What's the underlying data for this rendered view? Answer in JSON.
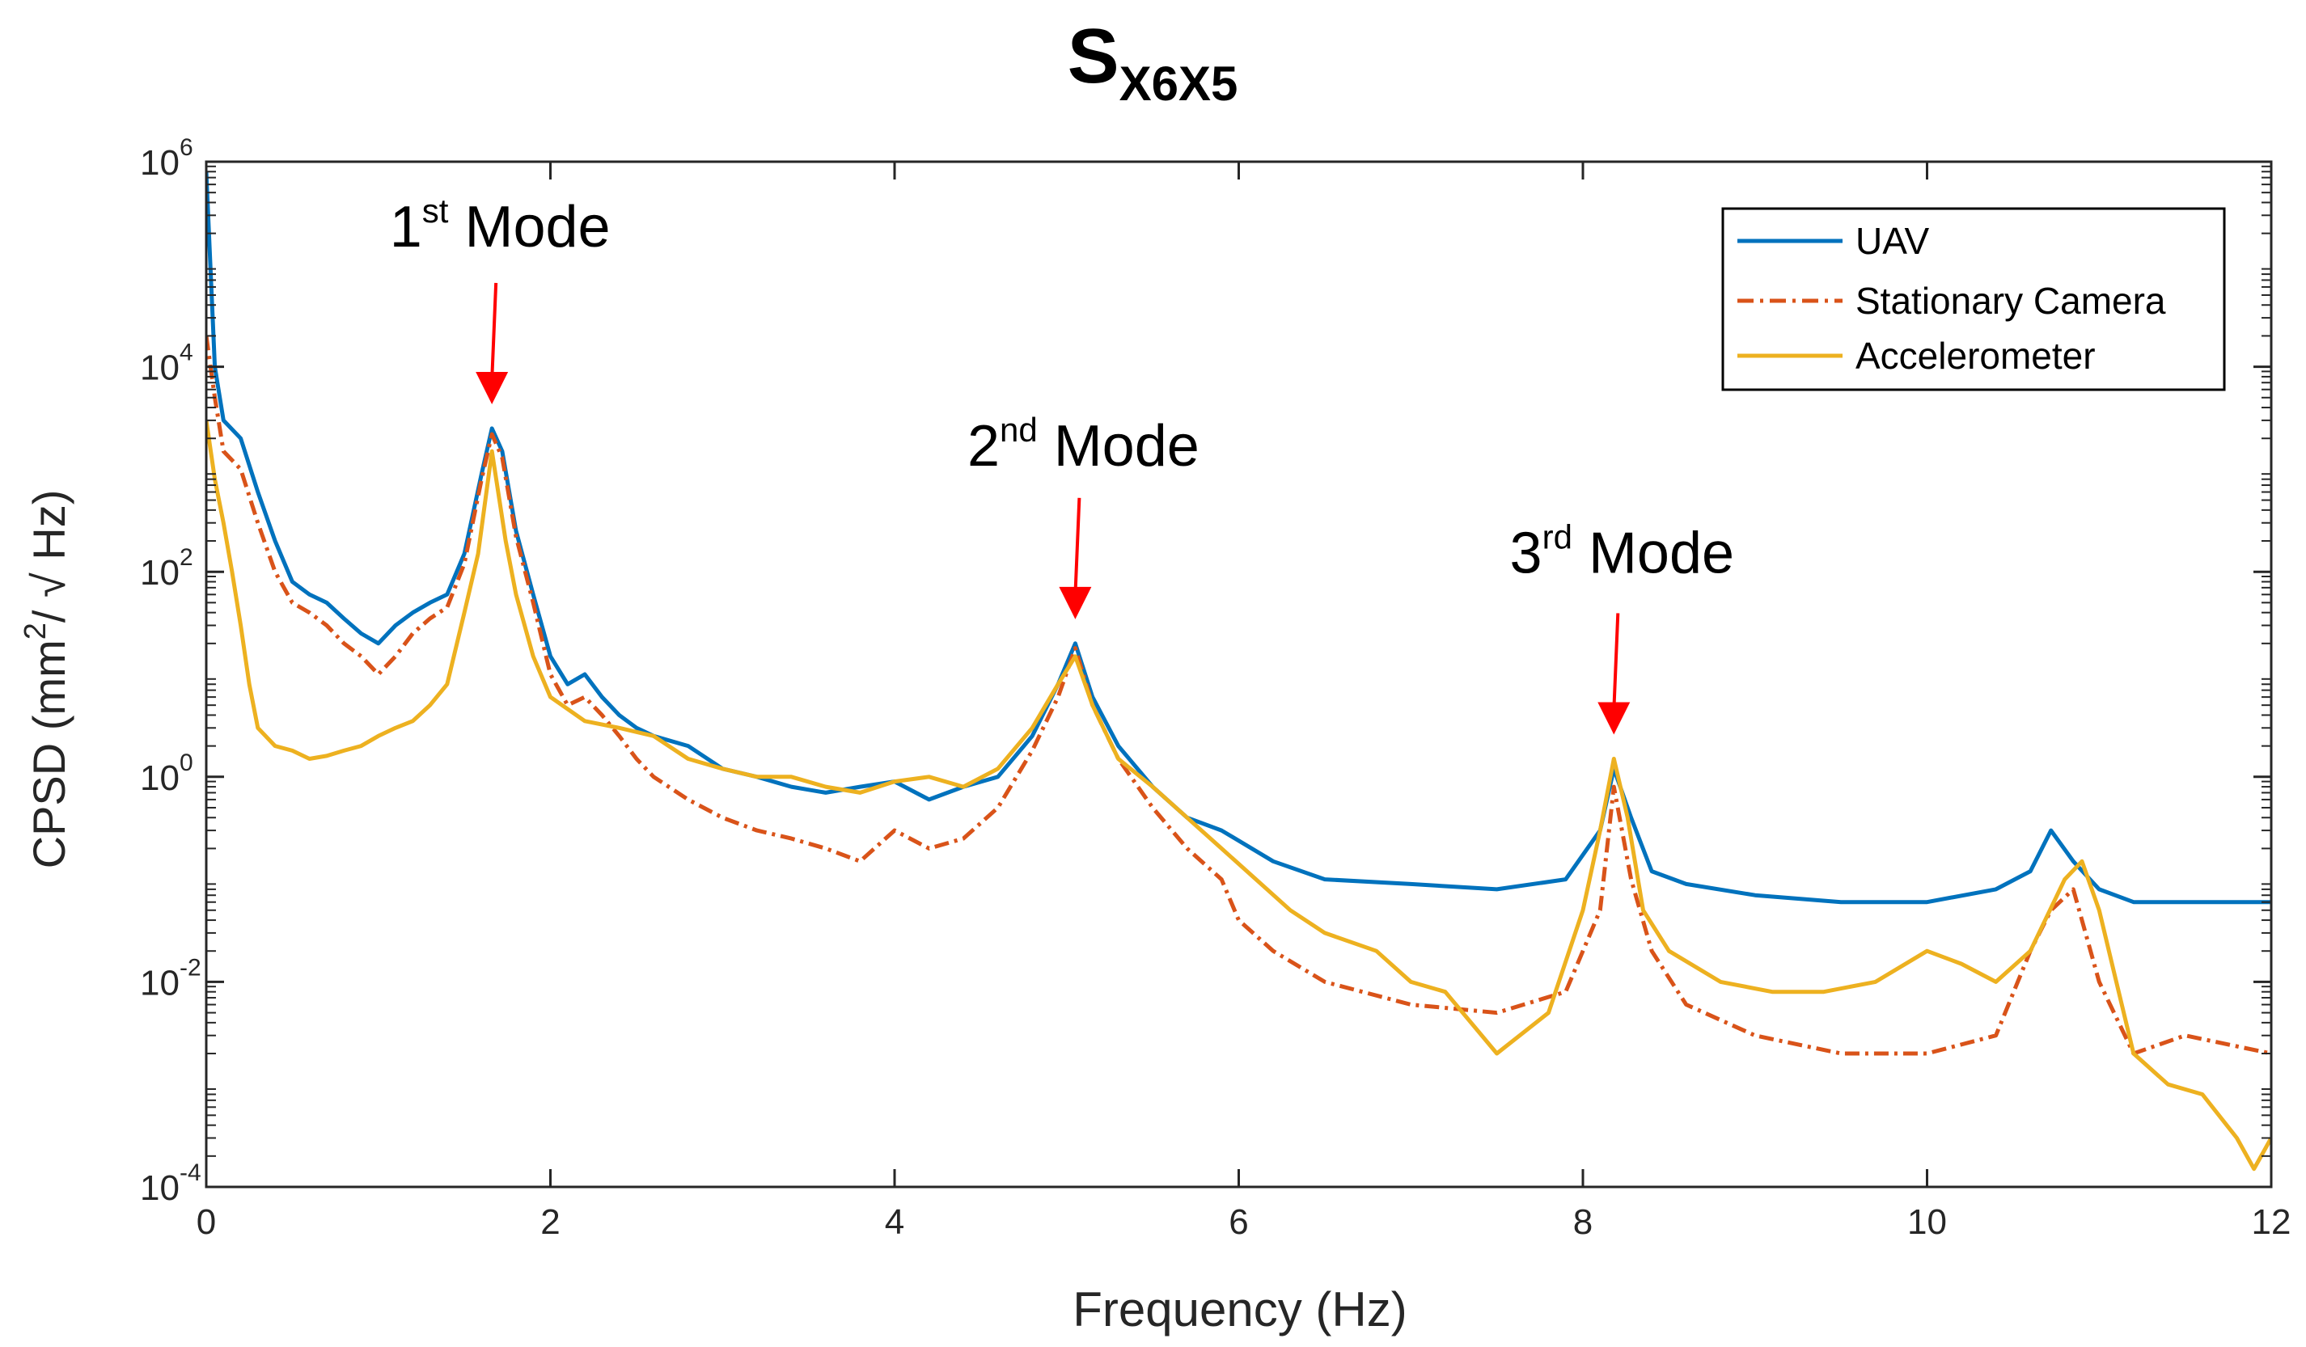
{
  "chart_data": {
    "type": "line",
    "title": {
      "main": "S",
      "subscript": "X6X5"
    },
    "xlabel": "Frequency (Hz)",
    "ylabel": {
      "prefix": "CPSD (mm",
      "sup": "2",
      "suffix": "/ √ Hz)"
    },
    "x_scale": "linear",
    "y_scale": "log",
    "xlim": [
      0,
      12
    ],
    "ylim": [
      0.0001,
      1000000
    ],
    "x_ticks": [
      0,
      2,
      4,
      6,
      8,
      10,
      12
    ],
    "y_ticks": [
      {
        "value": 0.0001,
        "base": "10",
        "exp": "-4"
      },
      {
        "value": 0.01,
        "base": "10",
        "exp": "-2"
      },
      {
        "value": 1,
        "base": "10",
        "exp": "0"
      },
      {
        "value": 100,
        "base": "10",
        "exp": "2"
      },
      {
        "value": 10000,
        "base": "10",
        "exp": "4"
      },
      {
        "value": 1000000,
        "base": "10",
        "exp": "6"
      }
    ],
    "legend_position": "top-right",
    "series": [
      {
        "name": "UAV",
        "color": "#0072BD",
        "style": "solid",
        "x": [
          0.0,
          0.05,
          0.1,
          0.2,
          0.3,
          0.4,
          0.5,
          0.6,
          0.7,
          0.8,
          0.9,
          1.0,
          1.1,
          1.2,
          1.3,
          1.4,
          1.5,
          1.6,
          1.66,
          1.72,
          1.8,
          1.9,
          2.0,
          2.1,
          2.2,
          2.3,
          2.4,
          2.5,
          2.6,
          2.8,
          3.0,
          3.2,
          3.4,
          3.6,
          3.8,
          4.0,
          4.2,
          4.4,
          4.6,
          4.8,
          4.95,
          5.05,
          5.15,
          5.3,
          5.5,
          5.7,
          5.9,
          6.2,
          6.5,
          7.0,
          7.5,
          7.9,
          8.1,
          8.18,
          8.28,
          8.4,
          8.6,
          9.0,
          9.5,
          10.0,
          10.4,
          10.6,
          10.72,
          10.85,
          11.0,
          11.2,
          11.5,
          12.0
        ],
        "y": [
          800000,
          10000,
          3000,
          2000,
          600,
          200,
          80,
          60,
          50,
          35,
          25,
          20,
          30,
          40,
          50,
          60,
          150,
          900,
          2500,
          1500,
          250,
          60,
          15,
          8,
          10,
          6,
          4,
          3,
          2.5,
          2,
          1.2,
          1,
          0.8,
          0.7,
          0.8,
          0.9,
          0.6,
          0.8,
          1.0,
          2.5,
          8,
          20,
          6,
          2,
          0.8,
          0.4,
          0.3,
          0.15,
          0.1,
          0.09,
          0.08,
          0.1,
          0.3,
          1.2,
          0.4,
          0.12,
          0.09,
          0.07,
          0.06,
          0.06,
          0.08,
          0.12,
          0.3,
          0.15,
          0.08,
          0.06,
          0.06,
          0.06
        ]
      },
      {
        "name": "Stationary Camera",
        "color": "#D95319",
        "style": "dashdot",
        "x": [
          0.0,
          0.05,
          0.1,
          0.2,
          0.3,
          0.4,
          0.5,
          0.6,
          0.7,
          0.8,
          0.9,
          1.0,
          1.1,
          1.2,
          1.3,
          1.4,
          1.5,
          1.6,
          1.66,
          1.72,
          1.8,
          1.9,
          2.0,
          2.1,
          2.2,
          2.3,
          2.4,
          2.5,
          2.6,
          2.8,
          3.0,
          3.2,
          3.4,
          3.6,
          3.8,
          4.0,
          4.2,
          4.4,
          4.6,
          4.8,
          4.95,
          5.05,
          5.15,
          5.3,
          5.5,
          5.7,
          5.9,
          6.0,
          6.2,
          6.5,
          7.0,
          7.5,
          7.9,
          8.1,
          8.18,
          8.28,
          8.4,
          8.6,
          9.0,
          9.5,
          10.0,
          10.4,
          10.6,
          10.72,
          10.85,
          11.0,
          11.2,
          11.5,
          12.0
        ],
        "y": [
          20000,
          5000,
          1500,
          1000,
          300,
          100,
          50,
          40,
          30,
          20,
          15,
          10,
          15,
          25,
          35,
          45,
          120,
          800,
          2200,
          1300,
          220,
          50,
          10,
          5,
          6,
          4,
          2.5,
          1.5,
          1,
          0.6,
          0.4,
          0.3,
          0.25,
          0.2,
          0.15,
          0.3,
          0.2,
          0.25,
          0.5,
          1.8,
          6,
          18,
          5,
          1.5,
          0.5,
          0.2,
          0.1,
          0.04,
          0.02,
          0.01,
          0.006,
          0.005,
          0.008,
          0.05,
          0.8,
          0.1,
          0.02,
          0.006,
          0.003,
          0.002,
          0.002,
          0.003,
          0.02,
          0.05,
          0.08,
          0.01,
          0.002,
          0.003,
          0.002
        ]
      },
      {
        "name": "Accelerometer",
        "color": "#EDB120",
        "style": "solid",
        "x": [
          0.0,
          0.05,
          0.1,
          0.15,
          0.2,
          0.25,
          0.3,
          0.4,
          0.5,
          0.6,
          0.7,
          0.8,
          0.9,
          1.0,
          1.1,
          1.2,
          1.3,
          1.4,
          1.5,
          1.58,
          1.66,
          1.74,
          1.8,
          1.9,
          2.0,
          2.2,
          2.4,
          2.6,
          2.8,
          3.0,
          3.2,
          3.4,
          3.6,
          3.8,
          4.0,
          4.2,
          4.4,
          4.6,
          4.8,
          4.95,
          5.05,
          5.15,
          5.3,
          5.5,
          5.7,
          5.9,
          6.1,
          6.3,
          6.5,
          6.8,
          7.0,
          7.2,
          7.5,
          7.8,
          8.0,
          8.1,
          8.18,
          8.26,
          8.35,
          8.5,
          8.8,
          9.1,
          9.4,
          9.7,
          10.0,
          10.2,
          10.4,
          10.6,
          10.8,
          10.9,
          11.0,
          11.1,
          11.2,
          11.4,
          11.6,
          11.8,
          11.9,
          12.0
        ],
        "y": [
          3000,
          800,
          300,
          100,
          30,
          8,
          3,
          2,
          1.8,
          1.5,
          1.6,
          1.8,
          2,
          2.5,
          3,
          3.5,
          5,
          8,
          40,
          150,
          1500,
          200,
          60,
          15,
          6,
          3.5,
          3,
          2.5,
          1.5,
          1.2,
          1.0,
          1.0,
          0.8,
          0.7,
          0.9,
          1.0,
          0.8,
          1.2,
          3,
          8,
          15,
          5,
          1.5,
          0.8,
          0.4,
          0.2,
          0.1,
          0.05,
          0.03,
          0.02,
          0.01,
          0.008,
          0.002,
          0.005,
          0.05,
          0.3,
          1.5,
          0.4,
          0.05,
          0.02,
          0.01,
          0.008,
          0.008,
          0.01,
          0.02,
          0.015,
          0.01,
          0.02,
          0.1,
          0.15,
          0.05,
          0.01,
          0.002,
          0.001,
          0.0008,
          0.0003,
          0.00015,
          0.0003
        ]
      }
    ],
    "annotations": [
      {
        "base": "1",
        "sup": "st",
        "text": " Mode",
        "x": 1.66,
        "y": 2500
      },
      {
        "base": "2",
        "sup": "nd",
        "text": " Mode",
        "x": 5.05,
        "y": 20
      },
      {
        "base": "3",
        "sup": "rd",
        "text": " Mode",
        "x": 8.18,
        "y": 1.5
      }
    ],
    "annotation_arrow_color": "#FF0000"
  }
}
